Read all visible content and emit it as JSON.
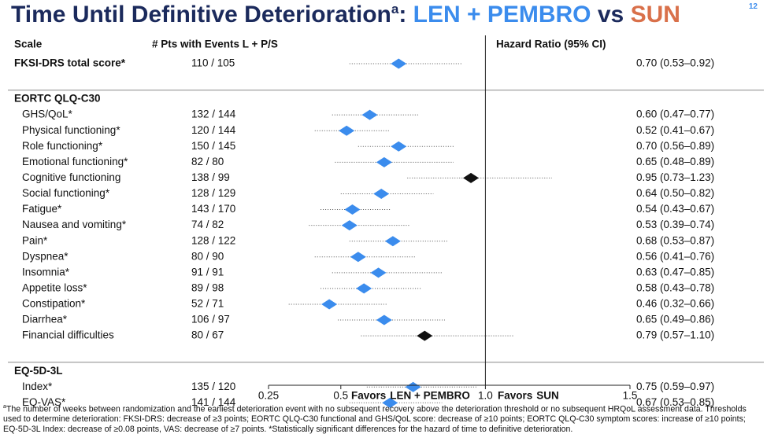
{
  "page_number": "12",
  "title": {
    "main": "Time Until Definitive Deterioration",
    "marker": "a",
    "sep": ": ",
    "treatment": "LEN + PEMBRO",
    "vs": " vs ",
    "control": "SUN"
  },
  "chart_data": {
    "type": "forest",
    "headers": {
      "scale": "Scale",
      "events": "# Pts with Events L + P/S",
      "hr": "Hazard Ratio (95% CI)"
    },
    "xlim": [
      0.25,
      1.5
    ],
    "xticks": [
      0.25,
      0.5,
      {
        "value": 1,
        "label": "1.0"
      },
      1.5
    ],
    "reference_line": 1,
    "colors": {
      "treatment": "#3b8ced",
      "control": "#d9704a",
      "ci": "#555555"
    },
    "favors": {
      "left_prefix": "Favors",
      "left": "LEN + PEMBRO",
      "right_prefix": "Favors",
      "right": "SUN"
    },
    "rows": [
      {
        "label": "FKSI-DRS total score*",
        "events": "110 / 105",
        "hr": 0.7,
        "ci": [
          0.53,
          0.92
        ],
        "ci_label": "0.70 (0.53–0.92)",
        "color": "#3b8ced",
        "bold": true
      },
      {
        "section": "EORTC QLQ-C30"
      },
      {
        "label": "GHS/QoL*",
        "events": "132 / 144",
        "hr": 0.6,
        "ci": [
          0.47,
          0.77
        ],
        "ci_label": "0.60 (0.47–0.77)",
        "color": "#3b8ced"
      },
      {
        "label": "Physical functioning*",
        "events": "120 / 144",
        "hr": 0.52,
        "ci": [
          0.41,
          0.67
        ],
        "ci_label": "0.52 (0.41–0.67)",
        "color": "#3b8ced"
      },
      {
        "label": "Role functioning*",
        "events": "150 / 145",
        "hr": 0.7,
        "ci": [
          0.56,
          0.89
        ],
        "ci_label": "0.70 (0.56–0.89)",
        "color": "#3b8ced"
      },
      {
        "label": "Emotional functioning*",
        "events": "82 / 80",
        "hr": 0.65,
        "ci": [
          0.48,
          0.89
        ],
        "ci_label": "0.65 (0.48–0.89)",
        "color": "#3b8ced"
      },
      {
        "label": "Cognitive functioning",
        "events": "138 / 99",
        "hr": 0.95,
        "ci": [
          0.73,
          1.23
        ],
        "ci_label": "0.95 (0.73–1.23)",
        "color": "#111111"
      },
      {
        "label": "Social functioning*",
        "events": "128 / 129",
        "hr": 0.64,
        "ci": [
          0.5,
          0.82
        ],
        "ci_label": "0.64 (0.50–0.82)",
        "color": "#3b8ced"
      },
      {
        "label": "Fatigue*",
        "events": "143 / 170",
        "hr": 0.54,
        "ci": [
          0.43,
          0.67
        ],
        "ci_label": "0.54 (0.43–0.67)",
        "color": "#3b8ced"
      },
      {
        "label": "Nausea and vomiting*",
        "events": "74 / 82",
        "hr": 0.53,
        "ci": [
          0.39,
          0.74
        ],
        "ci_label": "0.53 (0.39–0.74)",
        "color": "#3b8ced"
      },
      {
        "label": "Pain*",
        "events": "128 / 122",
        "hr": 0.68,
        "ci": [
          0.53,
          0.87
        ],
        "ci_label": "0.68 (0.53–0.87)",
        "color": "#3b8ced"
      },
      {
        "label": "Dyspnea*",
        "events": "80 / 90",
        "hr": 0.56,
        "ci": [
          0.41,
          0.76
        ],
        "ci_label": "0.56 (0.41–0.76)",
        "color": "#3b8ced"
      },
      {
        "label": "Insomnia*",
        "events": "91 / 91",
        "hr": 0.63,
        "ci": [
          0.47,
          0.85
        ],
        "ci_label": "0.63 (0.47–0.85)",
        "color": "#3b8ced"
      },
      {
        "label": "Appetite loss*",
        "events": "89 / 98",
        "hr": 0.58,
        "ci": [
          0.43,
          0.78
        ],
        "ci_label": "0.58 (0.43–0.78)",
        "color": "#3b8ced"
      },
      {
        "label": "Constipation*",
        "events": "52 / 71",
        "hr": 0.46,
        "ci": [
          0.32,
          0.66
        ],
        "ci_label": "0.46 (0.32–0.66)",
        "color": "#3b8ced"
      },
      {
        "label": "Diarrhea*",
        "events": "106 / 97",
        "hr": 0.65,
        "ci": [
          0.49,
          0.86
        ],
        "ci_label": "0.65 (0.49–0.86)",
        "color": "#3b8ced"
      },
      {
        "label": "Financial difficulties",
        "events": "80 / 67",
        "hr": 0.79,
        "ci": [
          0.57,
          1.1
        ],
        "ci_label": "0.79 (0.57–1.10)",
        "color": "#111111"
      },
      {
        "section": "EQ-5D-3L"
      },
      {
        "label": "Index*",
        "events": "135 / 120",
        "hr": 0.75,
        "ci": [
          0.59,
          0.97
        ],
        "ci_label": "0.75 (0.59–0.97)",
        "color": "#3b8ced"
      },
      {
        "label": "EQ-VAS*",
        "events": "141 / 144",
        "hr": 0.67,
        "ci": [
          0.53,
          0.85
        ],
        "ci_label": "0.67 (0.53–0.85)",
        "color": "#3b8ced"
      }
    ]
  },
  "footnote": {
    "marker": "a",
    "text": "The number of weeks between randomization and the earliest deterioration event with no subsequent recovery above the deterioration threshold or no subsequent HRQoL assessment data. Thresholds used to determine deterioration: FKSI-DRS: decrease of ≥3 points; EORTC QLQ-C30 functional and GHS/QoL score: decrease of ≥10 points; EORTC QLQ-C30 symptom scores: increase of ≥10 points; EQ-5D-3L Index: decrease of ≥0.08 points, VAS: decrease of ≥7 points. *Statistically significant differences for the hazard of time to definitive deterioration."
  }
}
